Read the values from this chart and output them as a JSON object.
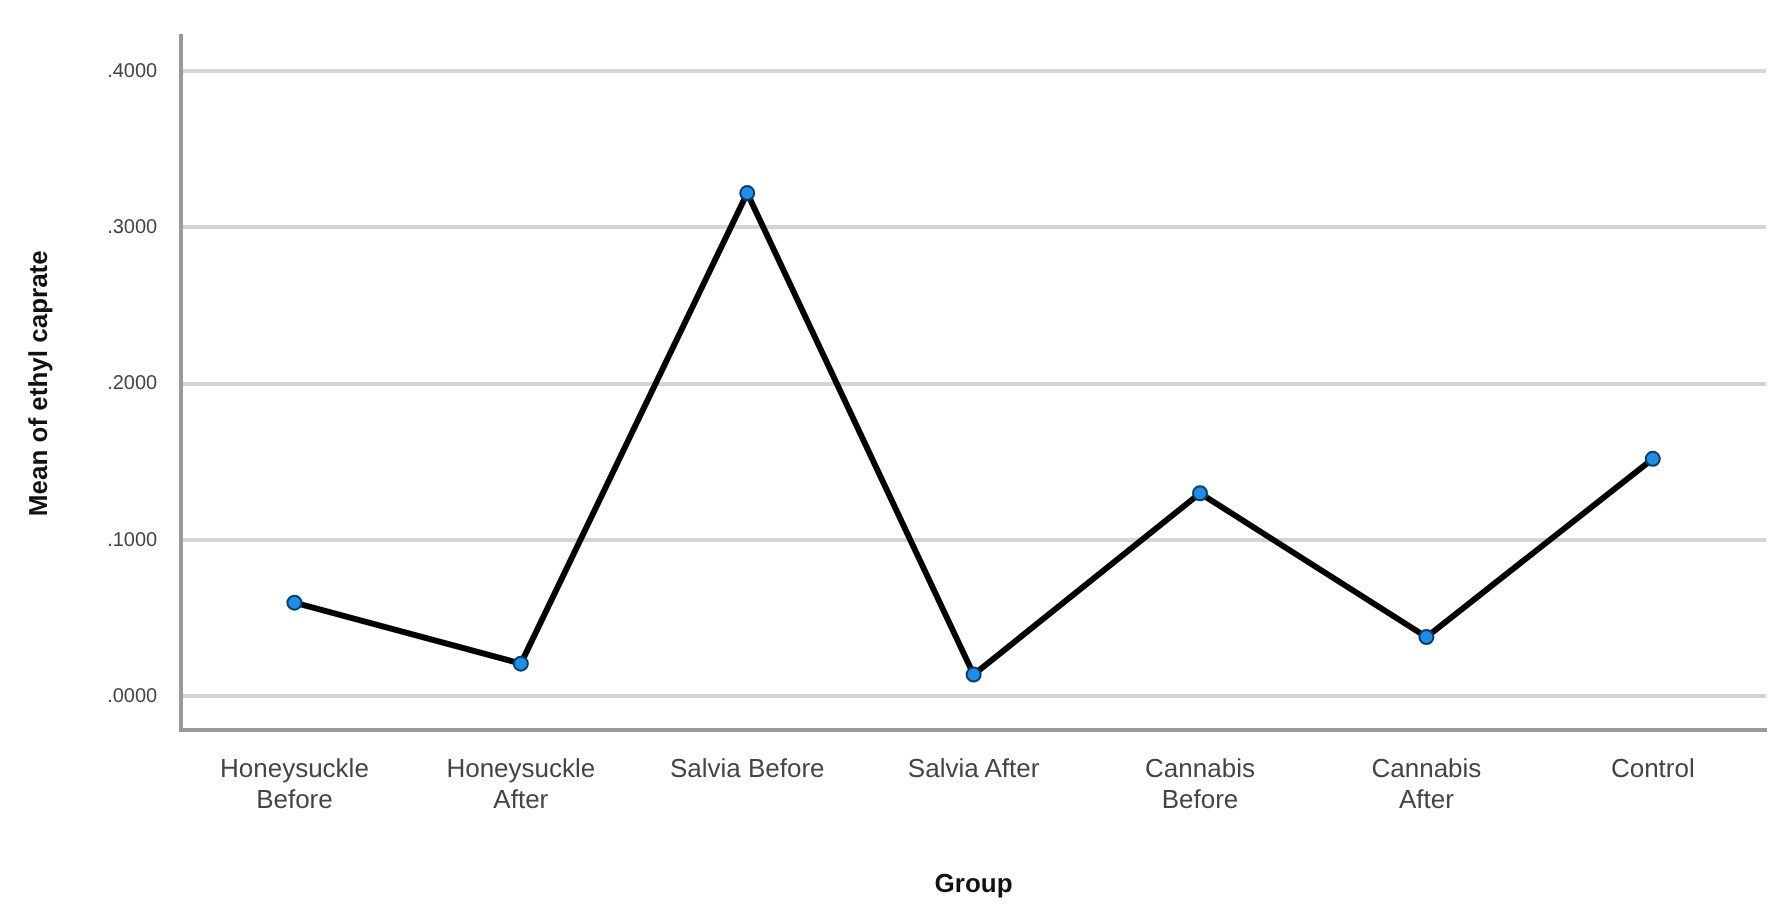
{
  "chart_data": {
    "type": "line",
    "xlabel": "Group",
    "ylabel": "Mean of ethyl caprate",
    "categories": [
      "Honeysuckle Before",
      "Honeysuckle After",
      "Salvia Before",
      "Salvia After",
      "Cannabis Before",
      "Cannabis After",
      "Control"
    ],
    "series": [
      {
        "color": "#000000",
        "colors": [
          "#1f8ee6",
          "#1f8ee6",
          "#1f8ee6",
          "#1f8ee6",
          "#1f8ee6",
          "#1f8ee6",
          "#1f8ee6"
        ],
        "values": [
          0.06,
          0.021,
          0.322,
          0.014,
          0.13,
          0.038,
          0.152
        ]
      }
    ],
    "ylim": [
      -0.0217,
      0.4225
    ],
    "yticks": [
      {
        "value": 0,
        "label": ".0000"
      },
      {
        "value": 0.1,
        "label": ".1000"
      },
      {
        "value": 0.2,
        "label": ".2000"
      },
      {
        "value": 0.3,
        "label": ".3000"
      },
      {
        "value": 0.4,
        "label": ".4000"
      }
    ],
    "grid": "y",
    "legend": false,
    "marker": "circle",
    "line_style": "solid"
  }
}
